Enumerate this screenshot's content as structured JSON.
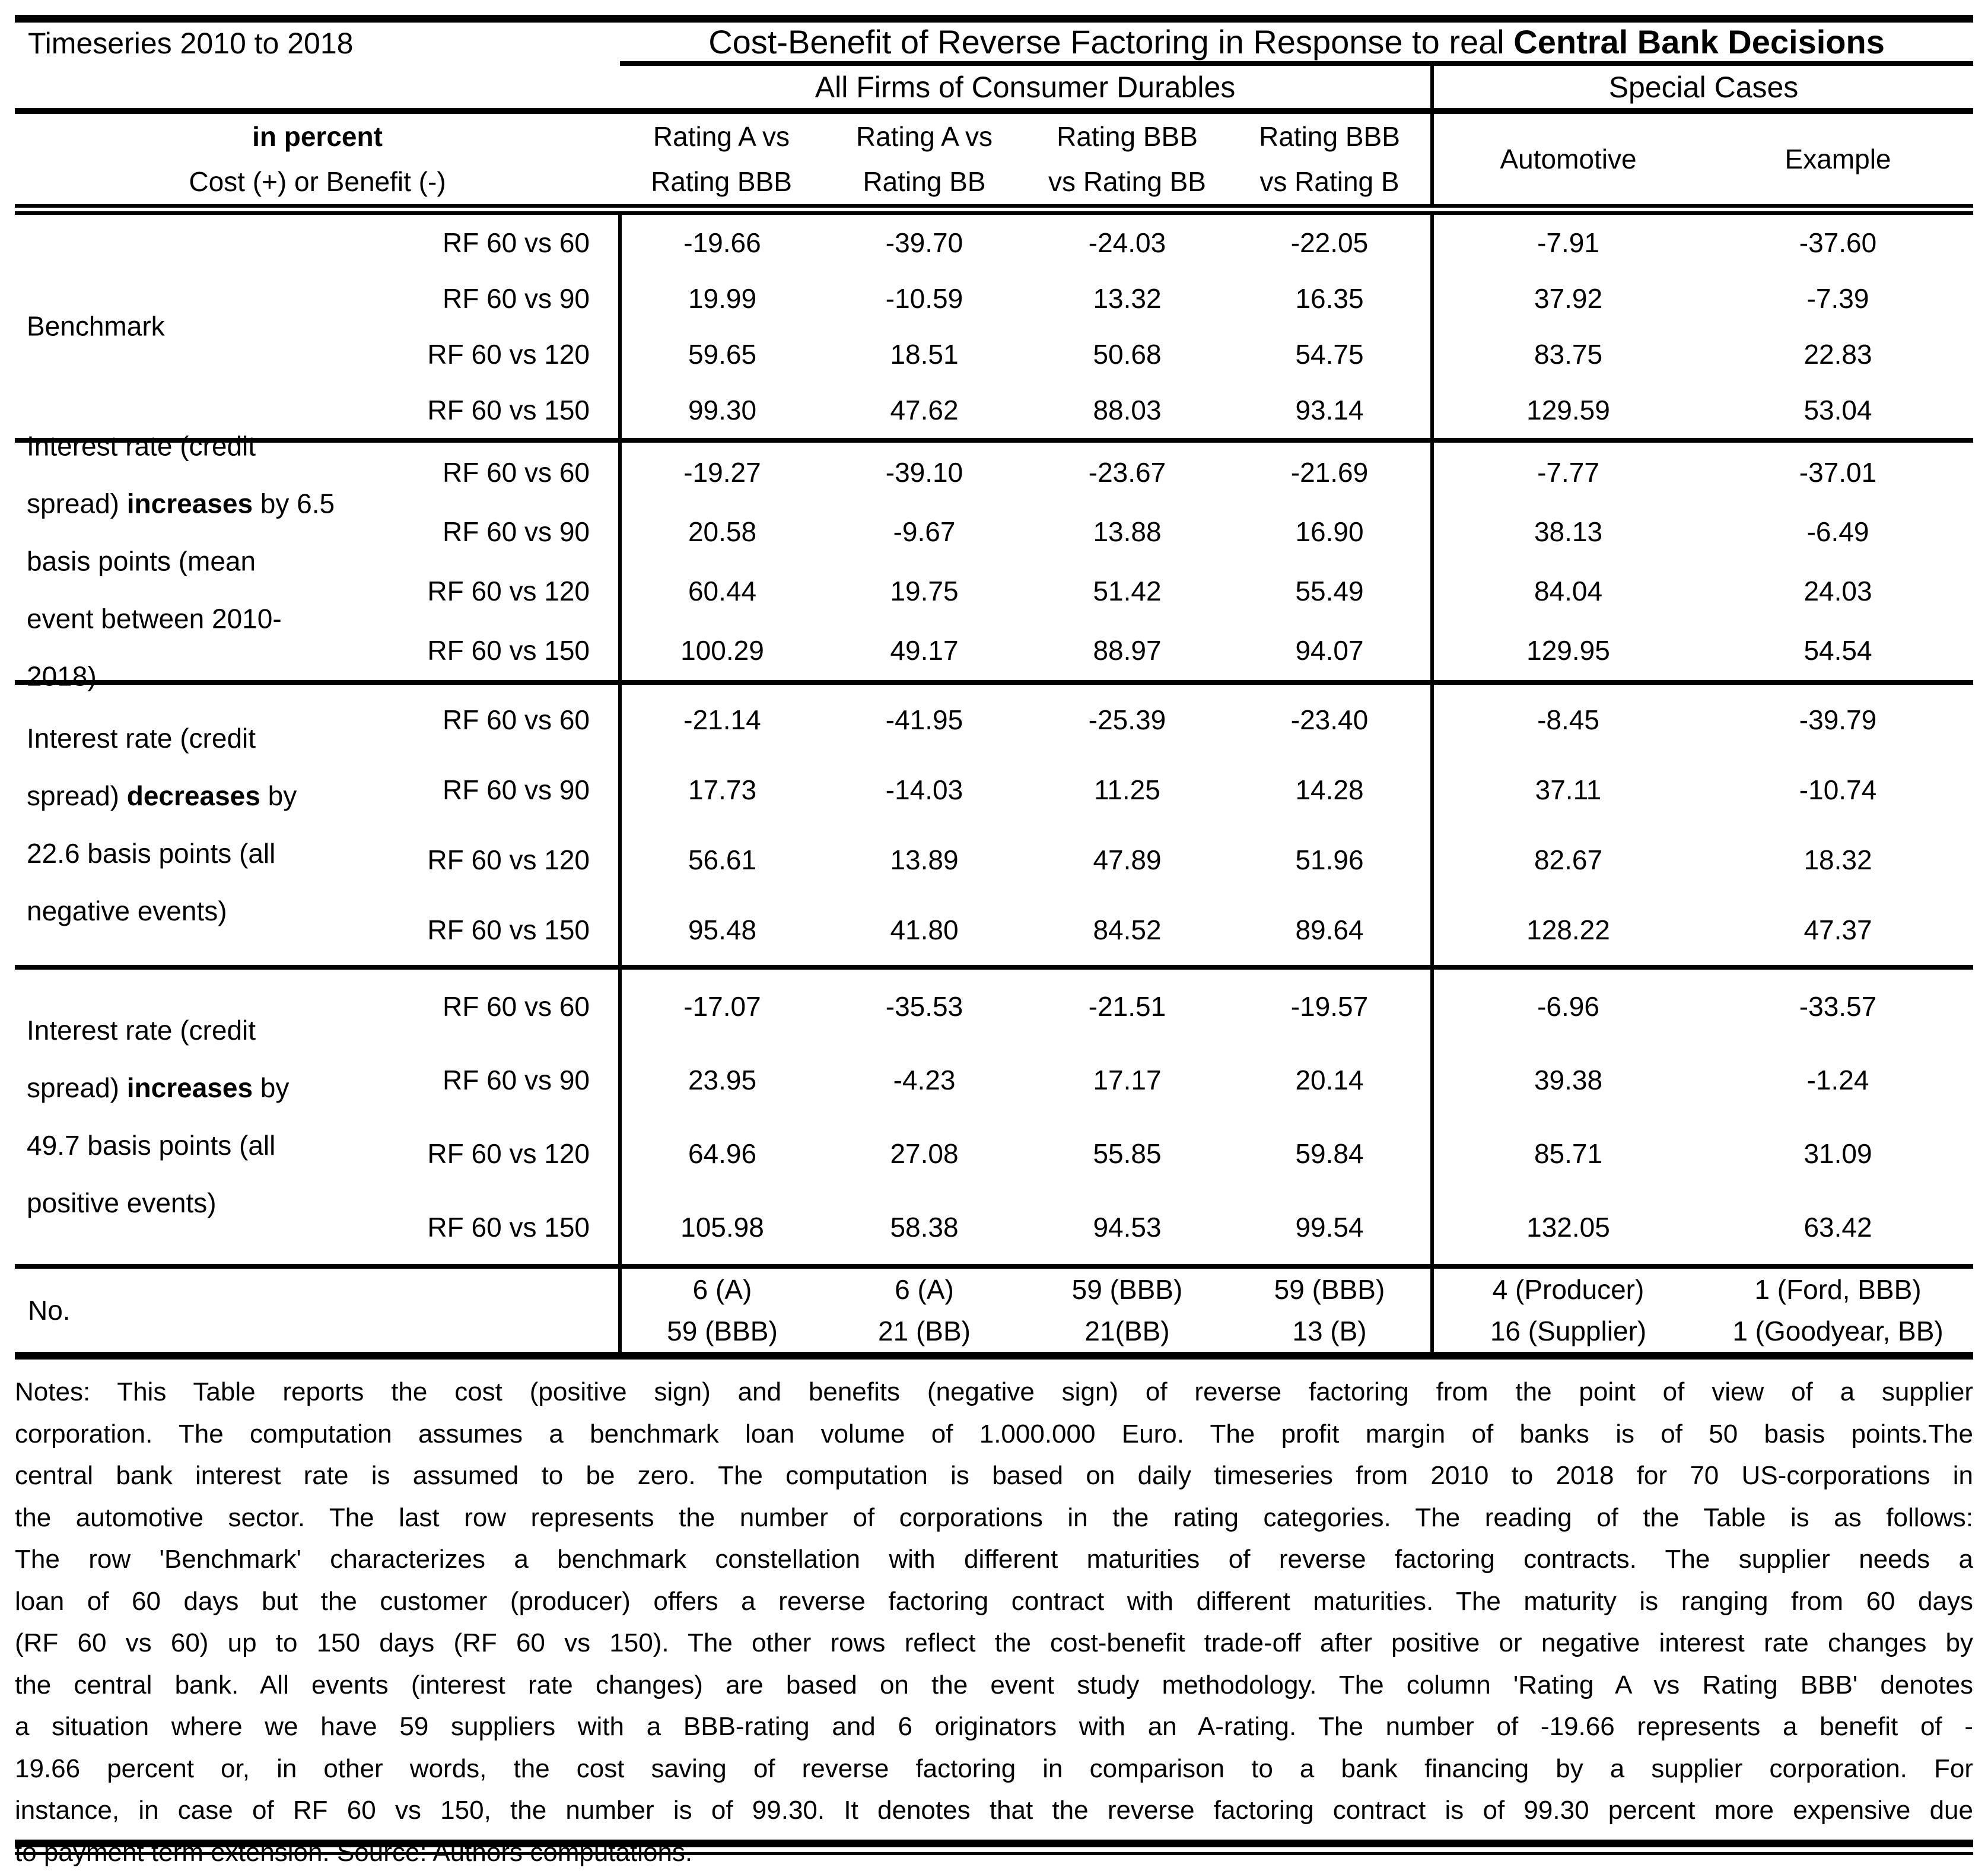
{
  "page": {
    "background": "#ffffff",
    "text_color": "#000000"
  },
  "header": {
    "corner": "Timeseries 2010 to 2018",
    "title": {
      "regular": "Cost-Benefit of Reverse Factoring in Response to real ",
      "bold": "Central Bank Decisions"
    },
    "groups": [
      {
        "label": "All Firms of Consumer Durables"
      },
      {
        "label": "Special Cases"
      }
    ],
    "unit_label": "in percent",
    "unit_sub": "Cost (+) or Benefit (-)",
    "columns": [
      {
        "line1": "Rating A vs",
        "line2": "Rating BBB"
      },
      {
        "line1": "Rating A vs",
        "line2": "Rating BB"
      },
      {
        "line1": "Rating BBB",
        "line2": "vs Rating BB"
      },
      {
        "line1": "Rating BBB",
        "line2": "vs Rating B"
      },
      {
        "line1": "Automotive"
      },
      {
        "line1": "Example"
      }
    ]
  },
  "sections": [
    {
      "label_lines": [
        [
          {
            "t": "Benchmark"
          }
        ]
      ],
      "rows": [
        {
          "rf": "RF 60 vs 60",
          "values": [
            "-19.66",
            "-39.70",
            "-24.03",
            "-22.05",
            "-7.91",
            "-37.60"
          ]
        },
        {
          "rf": "RF 60 vs 90",
          "values": [
            "19.99",
            "-10.59",
            "13.32",
            "16.35",
            "37.92",
            "-7.39"
          ]
        },
        {
          "rf": "RF 60 vs 120",
          "values": [
            "59.65",
            "18.51",
            "50.68",
            "54.75",
            "83.75",
            "22.83"
          ]
        },
        {
          "rf": "RF 60 vs 150",
          "values": [
            "99.30",
            "47.62",
            "88.03",
            "93.14",
            "129.59",
            "53.04"
          ]
        }
      ]
    },
    {
      "label_lines": [
        [
          {
            "t": "Interest rate (credit"
          }
        ],
        [
          {
            "t": "spread) "
          },
          {
            "t": "increases",
            "b": true
          },
          {
            "t": " by 6.5"
          }
        ],
        [
          {
            "t": "basis points (mean"
          }
        ],
        [
          {
            "t": "event between 2010-"
          }
        ],
        [
          {
            "t": "2018)"
          }
        ]
      ],
      "rows": [
        {
          "rf": "RF 60 vs 60",
          "values": [
            "-19.27",
            "-39.10",
            "-23.67",
            "-21.69",
            "-7.77",
            "-37.01"
          ]
        },
        {
          "rf": "RF 60 vs 90",
          "values": [
            "20.58",
            "-9.67",
            "13.88",
            "16.90",
            "38.13",
            "-6.49"
          ]
        },
        {
          "rf": "RF 60 vs 120",
          "values": [
            "60.44",
            "19.75",
            "51.42",
            "55.49",
            "84.04",
            "24.03"
          ]
        },
        {
          "rf": "RF 60 vs 150",
          "values": [
            "100.29",
            "49.17",
            "88.97",
            "94.07",
            "129.95",
            "54.54"
          ]
        }
      ]
    },
    {
      "label_lines": [
        [
          {
            "t": "Interest rate (credit"
          }
        ],
        [
          {
            "t": "spread) "
          },
          {
            "t": "decreases",
            "b": true
          },
          {
            "t": " by"
          }
        ],
        [
          {
            "t": "22.6 basis points (all"
          }
        ],
        [
          {
            "t": "negative events)"
          }
        ]
      ],
      "rows": [
        {
          "rf": "RF 60 vs 60",
          "values": [
            "-21.14",
            "-41.95",
            "-25.39",
            "-23.40",
            "-8.45",
            "-39.79"
          ]
        },
        {
          "rf": "RF 60 vs 90",
          "values": [
            "17.73",
            "-14.03",
            "11.25",
            "14.28",
            "37.11",
            "-10.74"
          ]
        },
        {
          "rf": "RF 60 vs 120",
          "values": [
            "56.61",
            "13.89",
            "47.89",
            "51.96",
            "82.67",
            "18.32"
          ]
        },
        {
          "rf": "RF 60 vs 150",
          "values": [
            "95.48",
            "41.80",
            "84.52",
            "89.64",
            "128.22",
            "47.37"
          ]
        }
      ]
    },
    {
      "label_lines": [
        [
          {
            "t": "Interest rate (credit"
          }
        ],
        [
          {
            "t": "spread) "
          },
          {
            "t": "increases",
            "b": true
          },
          {
            "t": " by"
          }
        ],
        [
          {
            "t": "49.7 basis points (all"
          }
        ],
        [
          {
            "t": "positive events)"
          }
        ]
      ],
      "rows": [
        {
          "rf": "RF 60 vs 60",
          "values": [
            "-17.07",
            "-35.53",
            "-21.51",
            "-19.57",
            "-6.96",
            "-33.57"
          ]
        },
        {
          "rf": "RF 60 vs 90",
          "values": [
            "23.95",
            "-4.23",
            "17.17",
            "20.14",
            "39.38",
            "-1.24"
          ]
        },
        {
          "rf": "RF 60 vs 120",
          "values": [
            "64.96",
            "27.08",
            "55.85",
            "59.84",
            "85.71",
            "31.09"
          ]
        },
        {
          "rf": "RF 60 vs 150",
          "values": [
            "105.98",
            "58.38",
            "94.53",
            "99.54",
            "132.05",
            "63.42"
          ]
        }
      ]
    }
  ],
  "no_row": {
    "label": "No.",
    "cells": [
      {
        "line1": "6 (A)",
        "line2": "59 (BBB)"
      },
      {
        "line1": "6 (A)",
        "line2": "21 (BB)"
      },
      {
        "line1": "59 (BBB)",
        "line2": "21(BB)"
      },
      {
        "line1": "59 (BBB)",
        "line2": "13 (B)"
      },
      {
        "line1": "4 (Producer)",
        "line2": "16 (Supplier)"
      },
      {
        "line1": "1 (Ford, BBB)",
        "line2": "1 (Goodyear, BB)"
      }
    ]
  },
  "notes_lines": [
    "Notes: This Table reports the cost (positive sign) and benefits (negative sign) of reverse factoring from the point of view of a supplier",
    "corporation. The computation assumes a benchmark loan volume of 1.000.000 Euro. The profit margin of banks is of 50 basis points.The",
    "central bank interest rate is assumed to be zero. The computation is based on daily timeseries from 2010 to 2018 for 70 US-corporations in",
    "the automotive sector. The last row represents the number of corporations in the rating categories. The reading of the Table is as follows:",
    "The row 'Benchmark' characterizes a benchmark constellation with different maturities of reverse factoring contracts. The supplier needs a",
    "loan of 60 days but the customer (producer) offers a reverse factoring contract with different maturities. The maturity is ranging from 60 days",
    "(RF 60 vs 60) up to 150 days (RF 60 vs 150). The other rows reflect the cost-benefit trade-off after positive or negative interest rate changes by",
    "the central bank. All events (interest rate changes) are based on the event study methodology. The column 'Rating A vs Rating BBB' denotes",
    "a situation where we have 59 suppliers with a BBB-rating and 6 originators with an A-rating. The number of -19.66 represents a benefit of -",
    "19.66 percent or, in other words, the cost saving of reverse factoring in comparison to a bank financing by a supplier corporation. For",
    "instance, in case of RF 60 vs 150, the number is of 99.30. It denotes that the reverse factoring contract is of 99.30 percent more expensive due",
    "to payment term extension. Source: Authors computations."
  ]
}
